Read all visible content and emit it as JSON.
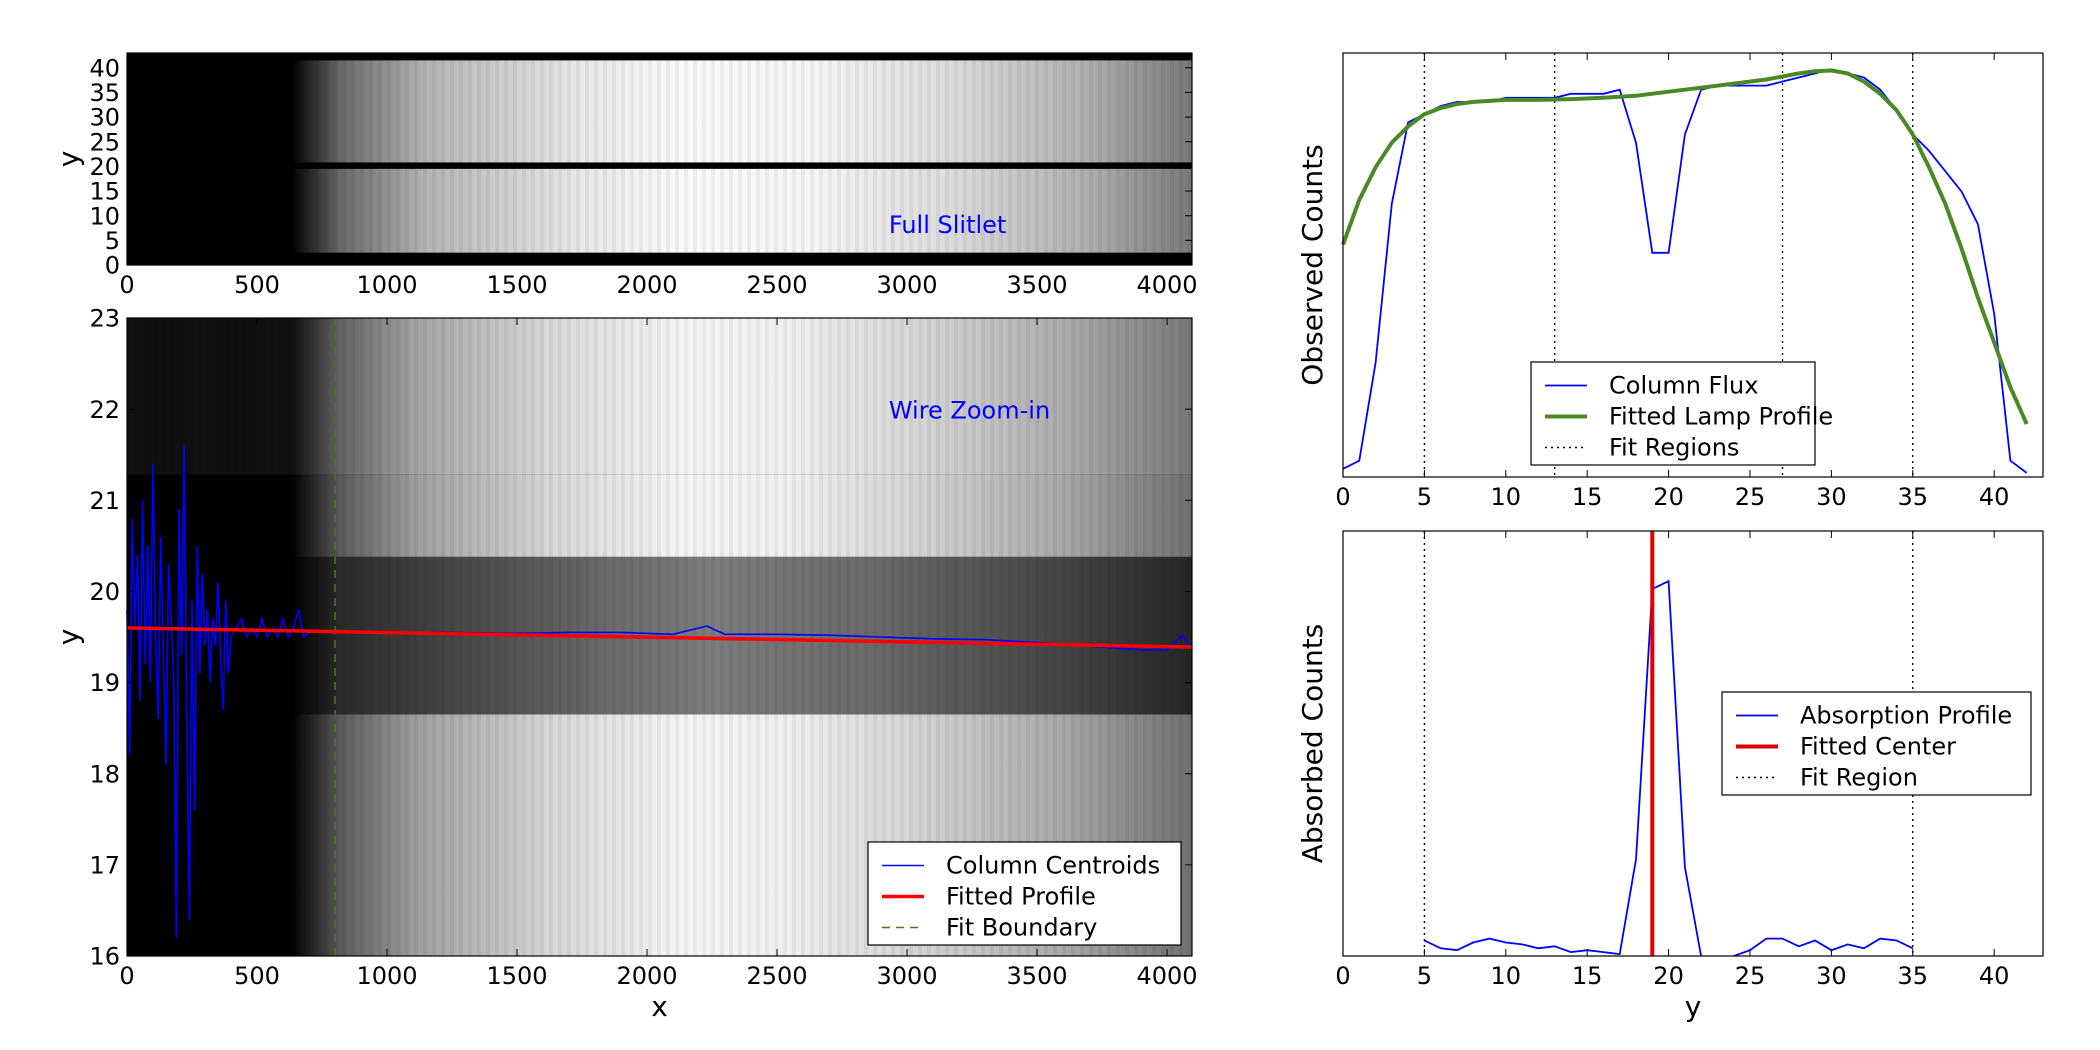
{
  "chart_data": [
    {
      "id": "full-slitlet",
      "type": "heatmap",
      "title": "",
      "annotation": "Full Slitlet",
      "xlabel": "",
      "ylabel": "y",
      "xlim": [
        0,
        4096
      ],
      "ylim": [
        0,
        43
      ],
      "xticks": [
        0,
        500,
        1000,
        1500,
        2000,
        2500,
        3000,
        3500,
        4000
      ],
      "yticks": [
        0,
        5,
        10,
        15,
        20,
        25,
        30,
        35,
        40
      ],
      "colormap": "gray",
      "image_rows": {
        "dark_rows": [
          [
            0,
            2.5
          ],
          [
            19.5,
            20.8
          ],
          [
            41.5,
            43
          ]
        ],
        "illuminated_x_start": 650
      }
    },
    {
      "id": "wire-zoom",
      "type": "line",
      "title": "",
      "annotation": "Wire Zoom-in",
      "xlabel": "x",
      "ylabel": "y",
      "xlim": [
        0,
        4096
      ],
      "ylim": [
        16,
        23
      ],
      "xticks": [
        0,
        500,
        1000,
        1500,
        2000,
        2500,
        3000,
        3500,
        4000
      ],
      "yticks": [
        16,
        17,
        18,
        19,
        20,
        21,
        22,
        23
      ],
      "legend": "lower-right",
      "image_bands": [
        {
          "y0": 16.0,
          "y1": 18.65,
          "level": "bright"
        },
        {
          "y0": 18.65,
          "y1": 20.38,
          "level": "dark"
        },
        {
          "y0": 20.38,
          "y1": 21.28,
          "level": "bright"
        },
        {
          "y0": 21.28,
          "y1": 23.0,
          "level": "brighter"
        }
      ],
      "series": [
        {
          "name": "Column Centroids",
          "color": "#0000ff",
          "x": [
            0,
            10,
            20,
            30,
            40,
            50,
            60,
            70,
            80,
            90,
            100,
            110,
            120,
            130,
            140,
            150,
            160,
            170,
            180,
            190,
            200,
            210,
            220,
            230,
            240,
            250,
            260,
            270,
            280,
            290,
            300,
            310,
            320,
            330,
            340,
            350,
            360,
            370,
            380,
            390,
            400,
            420,
            440,
            460,
            480,
            500,
            520,
            540,
            560,
            580,
            600,
            620,
            640,
            660,
            680,
            700,
            800,
            1000,
            1200,
            1500,
            1700,
            1900,
            2100,
            2230,
            2300,
            2500,
            2700,
            2900,
            3100,
            3300,
            3500,
            3700,
            3900,
            4000,
            4060,
            4090
          ],
          "y": [
            19.8,
            18.2,
            20.8,
            19.6,
            20.4,
            18.8,
            21.0,
            19.2,
            20.5,
            19.0,
            21.4,
            19.5,
            18.6,
            20.6,
            19.3,
            18.1,
            20.3,
            19.7,
            19.0,
            16.2,
            20.9,
            19.3,
            21.6,
            18.6,
            16.4,
            19.9,
            17.6,
            20.5,
            19.1,
            20.2,
            19.4,
            19.8,
            19.0,
            19.7,
            19.4,
            20.1,
            19.3,
            18.7,
            19.9,
            19.1,
            19.5,
            19.6,
            19.7,
            19.5,
            19.6,
            19.5,
            19.7,
            19.5,
            19.6,
            19.5,
            19.7,
            19.5,
            19.6,
            19.8,
            19.5,
            19.55,
            19.56,
            19.55,
            19.55,
            19.54,
            19.55,
            19.55,
            19.53,
            19.62,
            19.53,
            19.53,
            19.52,
            19.5,
            19.48,
            19.47,
            19.44,
            19.4,
            19.36,
            19.36,
            19.52,
            19.4
          ]
        },
        {
          "name": "Fitted Profile",
          "color": "#ff0000",
          "x": [
            0,
            4096
          ],
          "y": [
            19.6,
            19.39
          ]
        }
      ],
      "vlines": [
        {
          "name": "Fit Boundary",
          "x": 800,
          "color": "#3a7d1e",
          "style": "dashed"
        }
      ]
    },
    {
      "id": "column-flux",
      "type": "line",
      "title": "",
      "xlabel": "",
      "ylabel": "Observed Counts",
      "xlim": [
        0,
        43
      ],
      "xticks": [
        0,
        5,
        10,
        15,
        20,
        25,
        30,
        35,
        40
      ],
      "yticks_shown": false,
      "ylim": [
        0,
        1.04
      ],
      "legend": "lower-center",
      "series": [
        {
          "name": "Column Flux",
          "color": "#0000ff",
          "x": [
            0,
            1,
            2,
            3,
            4,
            5,
            6,
            7,
            8,
            9,
            10,
            11,
            12,
            13,
            14,
            15,
            16,
            17,
            18,
            19,
            20,
            21,
            22,
            23,
            24,
            25,
            26,
            27,
            28,
            29,
            30,
            31,
            32,
            33,
            34,
            35,
            36,
            37,
            38,
            39,
            40,
            41,
            42
          ],
          "y": [
            0.02,
            0.04,
            0.28,
            0.67,
            0.87,
            0.89,
            0.91,
            0.92,
            0.92,
            0.92,
            0.93,
            0.93,
            0.93,
            0.93,
            0.94,
            0.94,
            0.94,
            0.95,
            0.82,
            0.55,
            0.55,
            0.84,
            0.95,
            0.96,
            0.96,
            0.96,
            0.96,
            0.97,
            0.98,
            0.99,
            1.0,
            0.99,
            0.98,
            0.95,
            0.9,
            0.84,
            0.8,
            0.75,
            0.7,
            0.62,
            0.4,
            0.04,
            0.01
          ]
        },
        {
          "name": "Fitted Lamp Profile",
          "color": "#4a8a24",
          "x": [
            0,
            1,
            2,
            3,
            4,
            5,
            6,
            7,
            8,
            10,
            12,
            14,
            16,
            18,
            20,
            22,
            24,
            26,
            28,
            29,
            30,
            31,
            32,
            33,
            34,
            35,
            36,
            37,
            38,
            39,
            40,
            41,
            42
          ],
          "y": [
            0.57,
            0.68,
            0.76,
            0.82,
            0.86,
            0.89,
            0.905,
            0.915,
            0.92,
            0.925,
            0.925,
            0.927,
            0.93,
            0.935,
            0.945,
            0.955,
            0.965,
            0.975,
            0.99,
            0.995,
            0.997,
            0.99,
            0.97,
            0.94,
            0.9,
            0.84,
            0.76,
            0.67,
            0.56,
            0.44,
            0.33,
            0.22,
            0.13
          ]
        }
      ],
      "vlines": [
        {
          "name": "Fit Regions",
          "x": 5,
          "style": "dotted"
        },
        {
          "name": "Fit Regions",
          "x": 13,
          "style": "dotted"
        },
        {
          "name": "Fit Regions",
          "x": 27,
          "style": "dotted"
        },
        {
          "name": "Fit Regions",
          "x": 35,
          "style": "dotted"
        }
      ]
    },
    {
      "id": "absorption",
      "type": "line",
      "title": "",
      "xlabel": "y",
      "ylabel": "Absorbed Counts",
      "xlim": [
        0,
        43
      ],
      "xticks": [
        0,
        5,
        10,
        15,
        20,
        25,
        30,
        35,
        40
      ],
      "yticks_shown": false,
      "ylim": [
        0,
        1.1
      ],
      "legend": "center-right",
      "series": [
        {
          "name": "Absorption Profile",
          "color": "#0000ff",
          "x": [
            5,
            6,
            7,
            8,
            9,
            10,
            11,
            12,
            13,
            14,
            15,
            16,
            17,
            18,
            19,
            20,
            21,
            22
          ],
          "y": [
            0.04,
            0.02,
            0.015,
            0.035,
            0.045,
            0.035,
            0.03,
            0.02,
            0.025,
            0.01,
            0.015,
            0.01,
            0.005,
            0.25,
            0.95,
            0.97,
            0.23,
            0.0
          ],
          "x2": [
            24,
            25,
            26,
            27,
            28,
            29,
            30,
            31,
            32,
            33,
            34,
            35
          ],
          "y2": [
            0.0,
            0.015,
            0.045,
            0.045,
            0.025,
            0.04,
            0.015,
            0.03,
            0.02,
            0.045,
            0.04,
            0.02
          ]
        },
        {
          "name": "Fitted Center",
          "color": "#e00000",
          "center": 19.0
        }
      ],
      "vlines": [
        {
          "name": "Fit Region",
          "x": 5,
          "style": "dotted"
        },
        {
          "name": "Fit Region",
          "x": 35,
          "style": "dotted"
        }
      ]
    }
  ]
}
